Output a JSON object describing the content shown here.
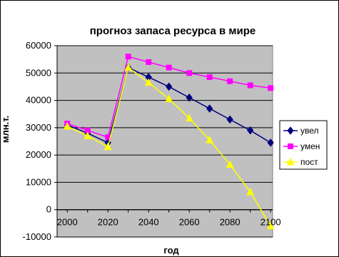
{
  "chart_data": {
    "type": "line",
    "title": "прогноз запаса ресурса в мире",
    "xlabel": "год",
    "ylabel": "млн.т.",
    "x": [
      2000,
      2010,
      2020,
      2030,
      2040,
      2050,
      2060,
      2070,
      2080,
      2090,
      2100
    ],
    "xlim": [
      1995,
      2101
    ],
    "ylim": [
      -10000,
      60000
    ],
    "x_ticks": [
      2000,
      2020,
      2040,
      2060,
      2080,
      2100
    ],
    "y_ticks": [
      -10000,
      0,
      10000,
      20000,
      30000,
      40000,
      50000,
      60000
    ],
    "grid": true,
    "legend_position": "right",
    "series": [
      {
        "name": "увел",
        "color": "#000080",
        "marker": "diamond",
        "values": [
          31000,
          28000,
          24500,
          52000,
          48500,
          45000,
          41000,
          37000,
          33000,
          29000,
          24500
        ]
      },
      {
        "name": "умен",
        "color": "#ff00ff",
        "marker": "square",
        "values": [
          31500,
          29000,
          26500,
          56000,
          54000,
          52000,
          50000,
          48500,
          47000,
          45500,
          44500
        ]
      },
      {
        "name": "пост",
        "color": "#ffff00",
        "marker": "triangle",
        "values": [
          30500,
          27000,
          23000,
          52000,
          46500,
          40500,
          33500,
          25500,
          16500,
          6500,
          -6000
        ]
      }
    ],
    "plot_background": "#c0c0c0"
  }
}
